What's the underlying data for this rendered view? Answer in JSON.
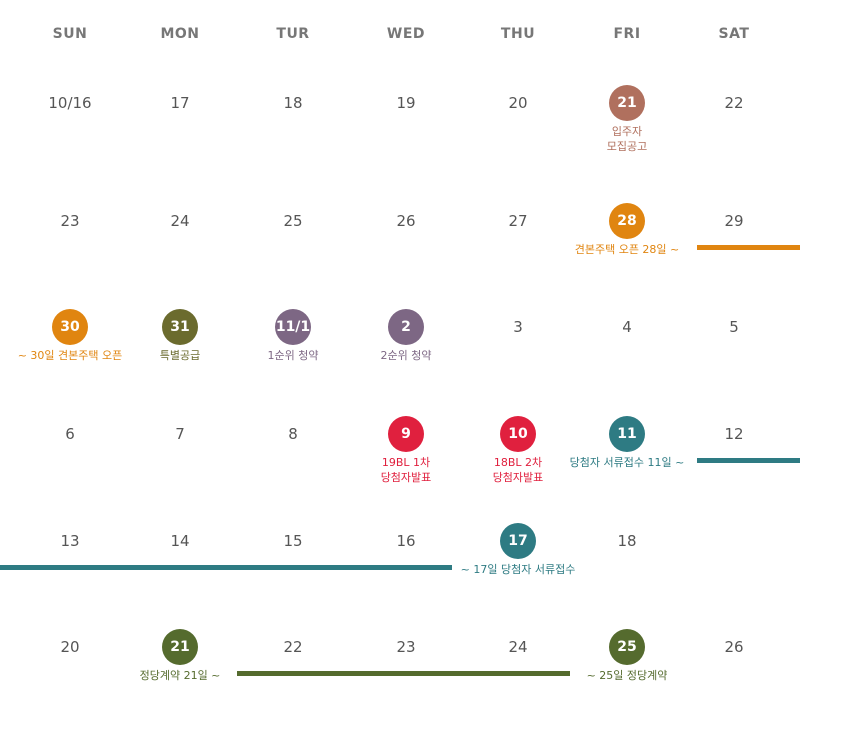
{
  "colors": {
    "brown": "#B0705E",
    "orange": "#E08510",
    "olive": "#6B6B2E",
    "purple": "#7D6784",
    "red": "#E0203E",
    "teal": "#2E7B83",
    "green": "#556B2E",
    "text": "#555555",
    "header": "#777777"
  },
  "weekdays": [
    "SUN",
    "MON",
    "TUR",
    "WED",
    "THU",
    "FRI",
    "SAT"
  ],
  "weeks": [
    [
      "10/16",
      "17",
      "18",
      "19",
      "20",
      "21",
      "22"
    ],
    [
      "23",
      "24",
      "25",
      "26",
      "27",
      "28",
      "29"
    ],
    [
      "30",
      "31",
      "11/1",
      "2",
      "3",
      "4",
      "5"
    ],
    [
      "6",
      "7",
      "8",
      "9",
      "10",
      "11",
      "12"
    ],
    [
      "13",
      "14",
      "15",
      "16",
      "17",
      "18",
      ""
    ],
    [
      "20",
      "21",
      "22",
      "23",
      "24",
      "25",
      "26"
    ]
  ],
  "highlights": [
    {
      "week": 0,
      "day": 5,
      "color": "brown"
    },
    {
      "week": 1,
      "day": 5,
      "color": "orange"
    },
    {
      "week": 2,
      "day": 0,
      "color": "orange"
    },
    {
      "week": 2,
      "day": 1,
      "color": "olive"
    },
    {
      "week": 2,
      "day": 2,
      "color": "purple"
    },
    {
      "week": 2,
      "day": 3,
      "color": "purple"
    },
    {
      "week": 3,
      "day": 3,
      "color": "red"
    },
    {
      "week": 3,
      "day": 4,
      "color": "red"
    },
    {
      "week": 3,
      "day": 5,
      "color": "teal"
    },
    {
      "week": 4,
      "day": 4,
      "color": "teal"
    },
    {
      "week": 5,
      "day": 1,
      "color": "green"
    },
    {
      "week": 5,
      "day": 5,
      "color": "green"
    }
  ],
  "notes": [
    {
      "week": 0,
      "day": 5,
      "color": "brown",
      "lines": [
        "입주자",
        "모집공고"
      ]
    },
    {
      "week": 1,
      "day": 5,
      "color": "orange",
      "lines": [
        "견본주택 오픈 28일 ~"
      ]
    },
    {
      "week": 2,
      "day": 0,
      "color": "orange",
      "lines": [
        "~ 30일 견본주택 오픈"
      ]
    },
    {
      "week": 2,
      "day": 1,
      "color": "olive",
      "lines": [
        "특별공급"
      ]
    },
    {
      "week": 2,
      "day": 2,
      "color": "purple",
      "lines": [
        "1순위 청약"
      ]
    },
    {
      "week": 2,
      "day": 3,
      "color": "purple",
      "lines": [
        "2순위 청약"
      ]
    },
    {
      "week": 3,
      "day": 3,
      "color": "red",
      "lines": [
        "19BL 1차",
        "당첨자발표"
      ]
    },
    {
      "week": 3,
      "day": 4,
      "color": "red",
      "lines": [
        "18BL 2차",
        "당첨자발표"
      ]
    },
    {
      "week": 3,
      "day": 5,
      "color": "teal",
      "lines": [
        "당첨자 서류접수 11일 ~"
      ]
    },
    {
      "week": 4,
      "day": 4,
      "color": "teal",
      "lines": [
        "~ 17일 당첨자 서류접수"
      ]
    },
    {
      "week": 5,
      "day": 1,
      "color": "green",
      "lines": [
        "정당계약 21일 ~"
      ]
    },
    {
      "week": 5,
      "day": 5,
      "color": "green",
      "lines": [
        "~ 25일 정당계약"
      ]
    }
  ],
  "bars": [
    {
      "week": 1,
      "color": "orange"
    },
    {
      "week": 3,
      "color": "teal"
    },
    {
      "week": 4,
      "color": "teal"
    },
    {
      "week": 5,
      "color": "green"
    }
  ]
}
